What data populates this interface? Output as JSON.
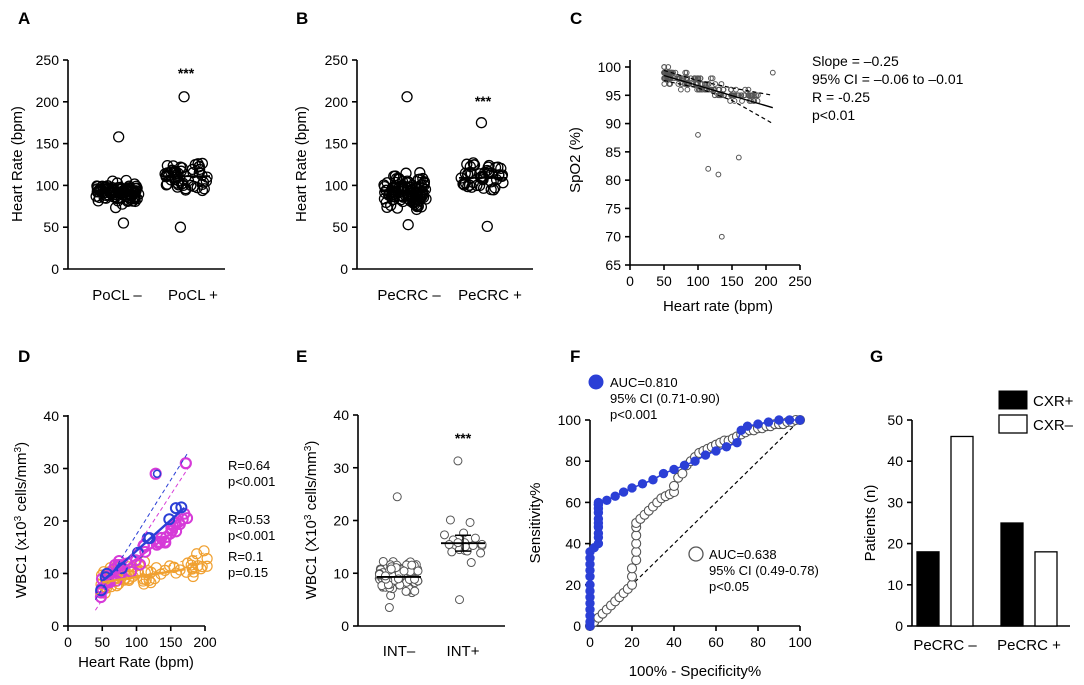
{
  "panels": {
    "A": "A",
    "B": "B",
    "C": "C",
    "D": "D",
    "E": "E",
    "F": "F",
    "G": "G"
  },
  "chart_data": [
    {
      "panel": "A",
      "type": "scatter",
      "subtype": "dot_plot",
      "ylabel": "Heart Rate (bpm)",
      "ylim": [
        0,
        250
      ],
      "yticks": [
        "0",
        "50",
        "100",
        "150",
        "200",
        "250"
      ],
      "categories": [
        "PoCL –",
        "PoCL +"
      ],
      "means": [
        92,
        111
      ],
      "significance": "***",
      "groups": [
        {
          "name": "PoCL –",
          "mean": 92,
          "min": 55,
          "max": 158,
          "n": 110
        },
        {
          "name": "PoCL +",
          "mean": 111,
          "min": 50,
          "max": 206,
          "n": 55
        }
      ]
    },
    {
      "panel": "B",
      "type": "scatter",
      "subtype": "dot_plot",
      "ylabel": "Heart Rate (bpm)",
      "ylim": [
        0,
        250
      ],
      "yticks": [
        "0",
        "50",
        "100",
        "150",
        "200",
        "250"
      ],
      "categories": [
        "PeCRC –",
        "PeCRC +"
      ],
      "means": [
        93,
        109
      ],
      "significance": "***",
      "groups": [
        {
          "name": "PeCRC –",
          "mean": 93,
          "min": 53,
          "max": 206,
          "n": 110
        },
        {
          "name": "PeCRC +",
          "mean": 109,
          "min": 51,
          "max": 175,
          "n": 50
        }
      ]
    },
    {
      "panel": "C",
      "type": "scatter",
      "xlabel": "Heart rate (bpm)",
      "ylabel": "SpO2 (%)",
      "xlim": [
        0,
        250
      ],
      "ylim": [
        65,
        100
      ],
      "xticks": [
        "0",
        "50",
        "100",
        "150",
        "200",
        "250"
      ],
      "yticks": [
        "65",
        "70",
        "75",
        "80",
        "85",
        "90",
        "95",
        "100"
      ],
      "fit": {
        "x": [
          50,
          210
        ],
        "y": [
          98.5,
          92.8
        ]
      },
      "ci_upper": {
        "x": [
          50,
          100,
          150,
          210
        ],
        "y": [
          99.4,
          97.6,
          96.3,
          95.0
        ]
      },
      "ci_lower": {
        "x": [
          50,
          100,
          150,
          210
        ],
        "y": [
          97.6,
          96.3,
          94.1,
          90.0
        ]
      },
      "outliers": {
        "x": [
          100,
          115,
          130,
          135,
          160,
          210
        ],
        "y": [
          88,
          82,
          81,
          70,
          84,
          99
        ]
      },
      "stats_lines": [
        "Slope = –0.25",
        "95% CI = –0.06 to –0.01",
        "R = -0.25",
        "p<0.01"
      ]
    },
    {
      "panel": "D",
      "type": "scatter",
      "xlabel": "Heart Rate (bpm)",
      "ylabel_main": "WBC1 (x10",
      "ylabel_sup": "3",
      "ylabel_rest": " cells/mm",
      "ylabel_sup2": "3",
      "ylabel_end": ")",
      "xlim": [
        0,
        200
      ],
      "ylim": [
        0,
        40
      ],
      "xticks": [
        "0",
        "50",
        "100",
        "150",
        "200"
      ],
      "yticks": [
        "0",
        "10",
        "20",
        "30",
        "40"
      ],
      "series": [
        {
          "name": "blue",
          "color": "#2b3fd6",
          "r": 0.64,
          "p": "p<0.001",
          "fit_x": [
            50,
            170
          ],
          "fit_y": [
            8.5,
            22.5
          ]
        },
        {
          "name": "magenta",
          "color": "#d63ad8",
          "r": 0.53,
          "p": "p<0.001",
          "fit_x": [
            50,
            170
          ],
          "fit_y": [
            8.0,
            19.5
          ]
        },
        {
          "name": "orange",
          "color": "#f0a030",
          "r": 0.1,
          "p": "p=0.15",
          "fit_x": [
            50,
            170
          ],
          "fit_y": [
            8.3,
            10.8
          ]
        }
      ],
      "labels": [
        [
          "R=0.64",
          "p<0.001"
        ],
        [
          "R=0.53",
          "p<0.001"
        ],
        [
          "R=0.1",
          "p=0.15"
        ]
      ]
    },
    {
      "panel": "E",
      "type": "scatter",
      "subtype": "dot_plot",
      "ylabel_main": "WBC1 (X10",
      "ylabel_sup": "3",
      "ylabel_rest": " cells/mm",
      "ylabel_sup2": "3",
      "ylabel_end": ")",
      "ylim": [
        0,
        40
      ],
      "yticks": [
        "0",
        "10",
        "20",
        "30",
        "40"
      ],
      "categories": [
        "INT–",
        "INT+"
      ],
      "means": [
        9.3,
        15.7
      ],
      "sem_top": 17.2,
      "sem_bottom": 14.2,
      "significance": "***",
      "groups": [
        {
          "name": "INT–",
          "mean": 9.3,
          "min": 3.5,
          "max": 24.5,
          "n": 120
        },
        {
          "name": "INT+",
          "mean": 15.7,
          "min": 5,
          "max": 31.3,
          "n": 22
        }
      ]
    },
    {
      "panel": "F",
      "type": "line",
      "subtype": "roc",
      "xlabel": "100% - Specificity%",
      "ylabel": "Sensitivity%",
      "xlim": [
        0,
        100
      ],
      "ylim": [
        0,
        100
      ],
      "xticks": [
        "0",
        "20",
        "40",
        "60",
        "80",
        "100"
      ],
      "yticks": [
        "0",
        "20",
        "40",
        "60",
        "80",
        "100"
      ],
      "series": [
        {
          "name": "blue",
          "color": "#2b3fd6",
          "legend": [
            "AUC=0.810",
            "95% CI (0.71-0.90)",
            "p<0.001"
          ],
          "x": [
            0,
            0,
            0,
            0,
            0,
            0,
            0,
            0,
            0,
            0,
            0,
            0,
            0,
            2,
            4,
            4,
            4,
            4,
            4,
            4,
            4,
            4,
            4,
            4,
            4,
            8,
            12,
            16,
            20,
            25,
            30,
            35,
            40,
            45,
            50,
            55,
            60,
            65,
            70,
            72,
            75,
            80,
            85,
            90,
            95,
            100
          ],
          "y": [
            0,
            2,
            5,
            8,
            11,
            14,
            17,
            20,
            24,
            27,
            30,
            33,
            36,
            38,
            40,
            43,
            45,
            48,
            50,
            52,
            55,
            57,
            59,
            59,
            60,
            61,
            63,
            65,
            67,
            69,
            71,
            74,
            76,
            78,
            80,
            83,
            85,
            87,
            89,
            95,
            97,
            98,
            99,
            100,
            100,
            100
          ]
        },
        {
          "name": "grey",
          "color": "#555555",
          "legend": [
            "AUC=0.638",
            "95% CI (0.49-0.78)",
            "p<0.05"
          ],
          "x": [
            0,
            2,
            4,
            6,
            8,
            10,
            12,
            14,
            16,
            18,
            20,
            20,
            20,
            22,
            22,
            22,
            22,
            22,
            22,
            24,
            26,
            28,
            30,
            32,
            34,
            36,
            38,
            40,
            40,
            42,
            44,
            46,
            48,
            50,
            52,
            54,
            56,
            58,
            60,
            62,
            64,
            66,
            68,
            70,
            72,
            74,
            76,
            78,
            80,
            82,
            84,
            86,
            88,
            90,
            92,
            94,
            96,
            98,
            100
          ],
          "y": [
            0,
            2,
            4,
            6,
            8,
            10,
            12,
            14,
            16,
            18,
            20,
            24,
            28,
            32,
            36,
            40,
            44,
            48,
            50,
            52,
            54,
            56,
            58,
            60,
            62,
            63,
            64,
            65,
            68,
            72,
            74,
            78,
            80,
            82,
            84,
            85,
            86,
            87,
            88,
            89,
            90,
            90,
            91,
            92,
            93,
            94,
            95,
            95,
            96,
            96,
            97,
            97,
            98,
            98,
            98,
            99,
            99,
            100,
            100
          ]
        }
      ],
      "reference": {
        "x": [
          0,
          100
        ],
        "y": [
          0,
          100
        ]
      }
    },
    {
      "panel": "G",
      "type": "bar",
      "ylabel": "Patients (n)",
      "ylim": [
        0,
        50
      ],
      "yticks": [
        "0",
        "10",
        "20",
        "30",
        "40",
        "50"
      ],
      "categories": [
        "PeCRC –",
        "PeCRC +"
      ],
      "series": [
        {
          "name": "CXR+",
          "color": "#000000",
          "values": [
            18,
            25
          ]
        },
        {
          "name": "CXR–",
          "color": "#ffffff",
          "values": [
            46,
            18
          ]
        }
      ]
    }
  ]
}
